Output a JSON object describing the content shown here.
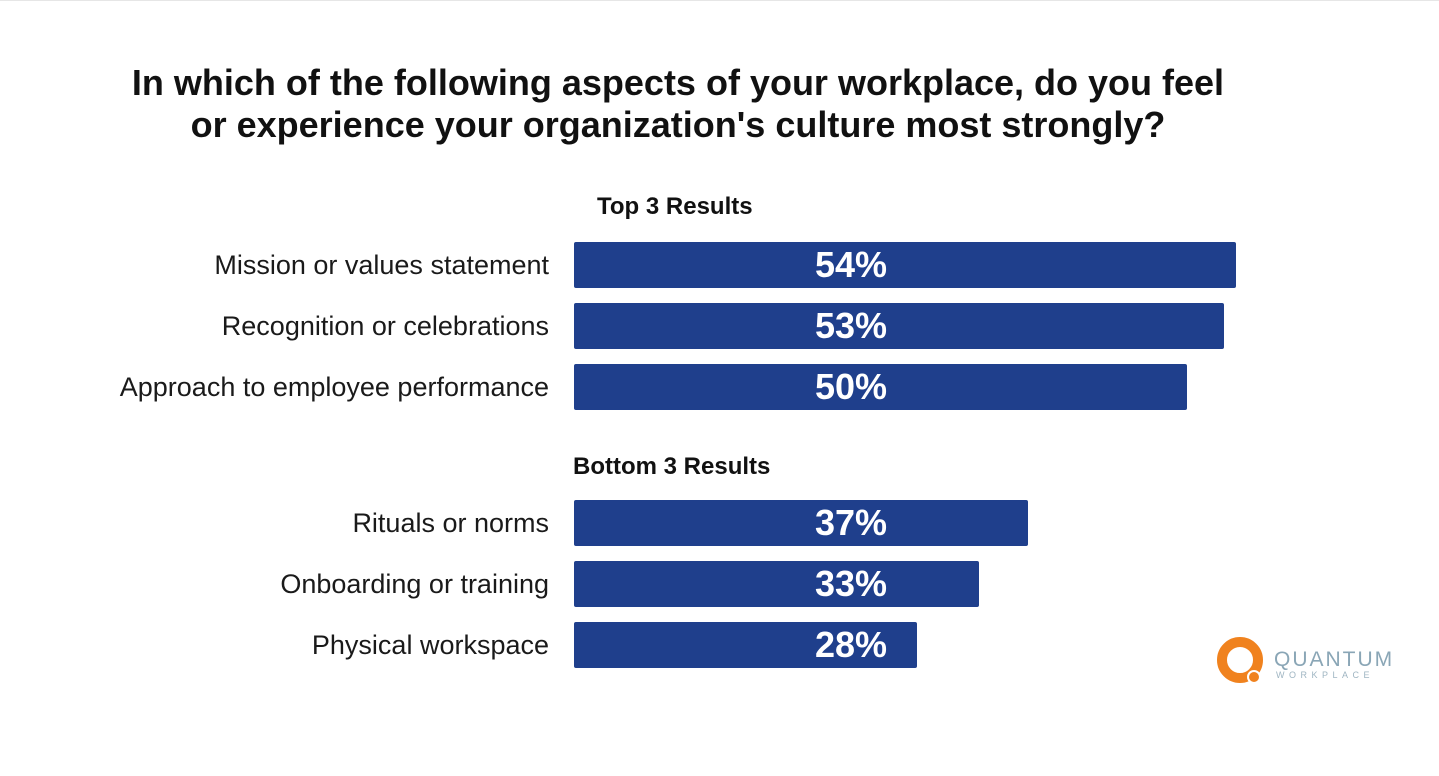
{
  "chart_data": {
    "type": "bar",
    "orientation": "horizontal",
    "title": "In which of the following aspects of your workplace, do you feel or experience your organization's culture most strongly?",
    "title_lines": [
      "In which of the following aspects of your workplace, do you feel",
      "or experience your organization's culture most strongly?"
    ],
    "groups": [
      {
        "label": "Top 3 Results",
        "categories": [
          "Mission or values statement",
          "Recognition or celebrations",
          "Approach to employee performance"
        ],
        "values": [
          54,
          53,
          50
        ],
        "value_labels": [
          "54%",
          "53%",
          "50%"
        ]
      },
      {
        "label": "Bottom 3 Results",
        "categories": [
          "Rituals or norms",
          "Onboarding or training",
          "Physical workspace"
        ],
        "values": [
          37,
          33,
          28
        ],
        "value_labels": [
          "37%",
          "33%",
          "28%"
        ]
      }
    ],
    "bar_color": "#1f3f8c",
    "grid": false,
    "legend": "none"
  },
  "logo": {
    "name": "QUANTUM",
    "sub": "WORKPLACE",
    "accent": "#f0821e"
  }
}
